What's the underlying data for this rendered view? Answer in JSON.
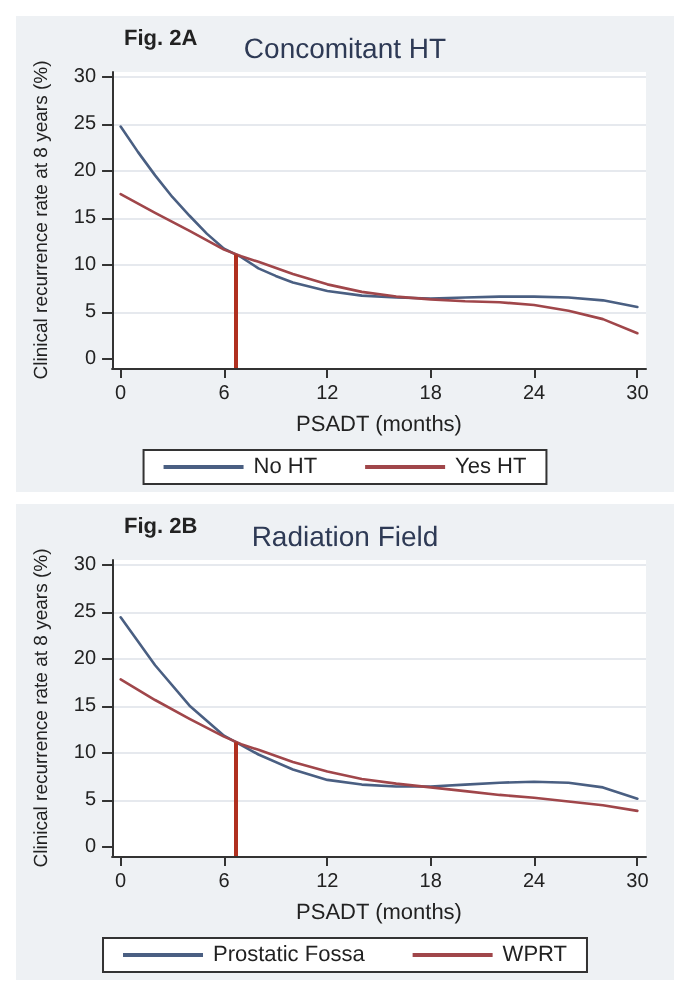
{
  "chart_data": [
    {
      "type": "line",
      "title": "Concomitant HT",
      "annotations": [
        "Fig. 2A"
      ],
      "xlabel": "PSADT (months)",
      "ylabel": "Clinical recurrence rate at 8 years (%)",
      "xlim": [
        -0.5,
        30.5
      ],
      "xticks": [
        0,
        6,
        12,
        18,
        24,
        30
      ],
      "ylim": [
        -1,
        30.5
      ],
      "yticks": [
        0,
        5,
        10,
        15,
        20,
        25,
        30
      ],
      "grid": "y",
      "legend": "bottom",
      "marker": "none",
      "line_style": "solid",
      "series": [
        {
          "name": "No HT",
          "color": "#4a5f82",
          "x": [
            0,
            1,
            2,
            3,
            4,
            5,
            6,
            7,
            8,
            9,
            10,
            12,
            14,
            16,
            18,
            20,
            22,
            24,
            26,
            28,
            30
          ],
          "values": [
            24.7,
            22,
            19.5,
            17.2,
            15.2,
            13.3,
            11.7,
            10.8,
            9.6,
            8.8,
            8.1,
            7.2,
            6.7,
            6.5,
            6.4,
            6.5,
            6.6,
            6.6,
            6.5,
            6.2,
            5.5
          ]
        },
        {
          "name": "Yes HT",
          "color": "#a0464a",
          "x": [
            0,
            2,
            4,
            6,
            7,
            8,
            10,
            12,
            14,
            16,
            18,
            20,
            22,
            24,
            26,
            28,
            30
          ],
          "values": [
            17.5,
            15.5,
            13.6,
            11.6,
            10.9,
            10.3,
            9,
            7.9,
            7.1,
            6.6,
            6.3,
            6.1,
            6,
            5.7,
            5.1,
            4.2,
            2.7
          ]
        }
      ],
      "ref_lines": [
        {
          "axis": "x",
          "value": 6.7,
          "color": "#b03020"
        }
      ]
    },
    {
      "type": "line",
      "title": "Radiation Field",
      "annotations": [
        "Fig. 2B"
      ],
      "xlabel": "PSADT (months)",
      "ylabel": "Clinical recurrence rate at 8 years (%)",
      "xlim": [
        -0.5,
        30.5
      ],
      "xticks": [
        0,
        6,
        12,
        18,
        24,
        30
      ],
      "ylim": [
        -1,
        30.5
      ],
      "yticks": [
        0,
        5,
        10,
        15,
        20,
        25,
        30
      ],
      "grid": "y",
      "legend": "bottom",
      "marker": "none",
      "line_style": "solid",
      "series": [
        {
          "name": "Prostatic Fossa",
          "color": "#4a5f82",
          "x": [
            0,
            2,
            4,
            6,
            7,
            8,
            10,
            12,
            14,
            16,
            18,
            20,
            22,
            24,
            26,
            28,
            30
          ],
          "values": [
            24.4,
            19.3,
            15,
            11.8,
            10.8,
            9.8,
            8.2,
            7.1,
            6.6,
            6.4,
            6.4,
            6.6,
            6.8,
            6.9,
            6.8,
            6.3,
            5.1
          ]
        },
        {
          "name": "WPRT",
          "color": "#a0464a",
          "x": [
            0,
            2,
            4,
            6,
            7,
            8,
            10,
            12,
            14,
            16,
            18,
            20,
            22,
            24,
            26,
            28,
            30
          ],
          "values": [
            17.8,
            15.6,
            13.6,
            11.7,
            10.9,
            10.3,
            9,
            8,
            7.2,
            6.7,
            6.3,
            5.9,
            5.5,
            5.2,
            4.8,
            4.4,
            3.8
          ]
        }
      ],
      "ref_lines": [
        {
          "axis": "x",
          "value": 6.7,
          "color": "#b03020"
        }
      ]
    }
  ]
}
